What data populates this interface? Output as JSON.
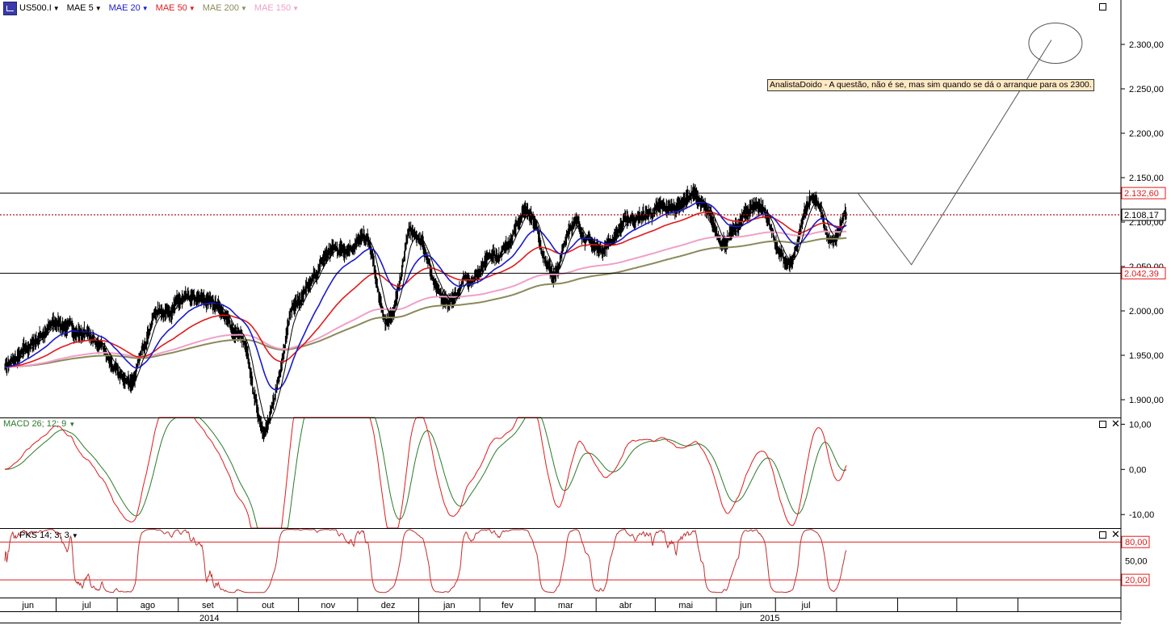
{
  "legend": {
    "symbol": "US500.I",
    "indicators": [
      {
        "name": "MAE 5",
        "color": "#000000"
      },
      {
        "name": "MAE 20",
        "color": "#1a1acc"
      },
      {
        "name": "MAE 50",
        "color": "#e01b1b"
      },
      {
        "name": "MAE 200",
        "color": "#8a8a5a"
      },
      {
        "name": "MAE 150",
        "color": "#f0a0c8"
      }
    ]
  },
  "annotation": "AnalistaDoido - A questão, não é se, mas sim quando se dá o arranque para os 2300.",
  "price_axis": {
    "ticks": [
      "2.300,00",
      "2.250,00",
      "2.200,00",
      "2.150,00",
      "2.100,00",
      "2.050,00",
      "2.000,00",
      "1.950,00",
      "1.900,00"
    ],
    "tick_values": [
      2300,
      2250,
      2200,
      2150,
      2100,
      2050,
      2000,
      1950,
      1900
    ],
    "range": [
      1880,
      2350
    ],
    "level_labels": [
      {
        "text": "2.132,60",
        "value": 2132.6,
        "color": "#e01b1b"
      },
      {
        "text": "2.108,17",
        "value": 2108.17,
        "color": "#000000"
      },
      {
        "text": "2.042,39",
        "value": 2042.39,
        "color": "#e01b1b"
      }
    ]
  },
  "macd": {
    "label": "MACD 26; 12; 9",
    "ticks": [
      "10,00",
      "0,00",
      "-10,00"
    ],
    "tick_values": [
      10,
      0,
      -10
    ],
    "range": [
      -13,
      11.5
    ]
  },
  "stoch": {
    "label": "PKS 14; 3; 3",
    "ticks": [
      "80,00",
      "50,00",
      "20,00"
    ],
    "tick_values": [
      80,
      50,
      20
    ],
    "range": [
      -8,
      102
    ]
  },
  "time_axis": {
    "months": [
      "jun",
      "jul",
      "ago",
      "set",
      "out",
      "nov",
      "dez",
      "jan",
      "fev",
      "mar",
      "abr",
      "mai",
      "jun",
      "jul",
      "",
      "",
      "",
      ""
    ],
    "years": [
      "2014",
      "2015"
    ]
  },
  "chart_data": {
    "type": "line",
    "title": "US500.I",
    "x_range": [
      "2014-06",
      "2015-12"
    ],
    "series": [
      {
        "name": "US500.I",
        "x": [
          "2014-06-05",
          "2014-07-03",
          "2014-07-15",
          "2014-08-07",
          "2014-08-22",
          "2014-09-05",
          "2014-09-19",
          "2014-10-01",
          "2014-10-15",
          "2014-10-31",
          "2014-11-20",
          "2014-12-05",
          "2014-12-16",
          "2014-12-29",
          "2015-01-15",
          "2015-01-28",
          "2015-02-10",
          "2015-02-25",
          "2015-03-11",
          "2015-03-20",
          "2015-04-02",
          "2015-04-20",
          "2015-05-08",
          "2015-05-20",
          "2015-06-05",
          "2015-06-22",
          "2015-07-08",
          "2015-07-20",
          "2015-07-30",
          "2015-08-06"
        ],
        "values": [
          1940,
          1985,
          1975,
          1920,
          2000,
          2010,
          2010,
          1975,
          1870,
          2010,
          2070,
          2080,
          1985,
          2090,
          2010,
          2040,
          2060,
          2115,
          2040,
          2100,
          2070,
          2105,
          2115,
          2130,
          2080,
          2120,
          2050,
          2130,
          2075,
          2105
        ]
      },
      {
        "name": "MAE 5"
      },
      {
        "name": "MAE 20"
      },
      {
        "name": "MAE 50"
      },
      {
        "name": "MAE 150"
      },
      {
        "name": "MAE 200"
      }
    ],
    "horizontal_levels": [
      2132.6,
      2108.17,
      2042.39
    ],
    "projection": [
      {
        "x": "2015-08-12",
        "y": 2132
      },
      {
        "x": "2015-09-08",
        "y": 2052
      },
      {
        "x": "2015-11-18",
        "y": 2305
      }
    ]
  }
}
